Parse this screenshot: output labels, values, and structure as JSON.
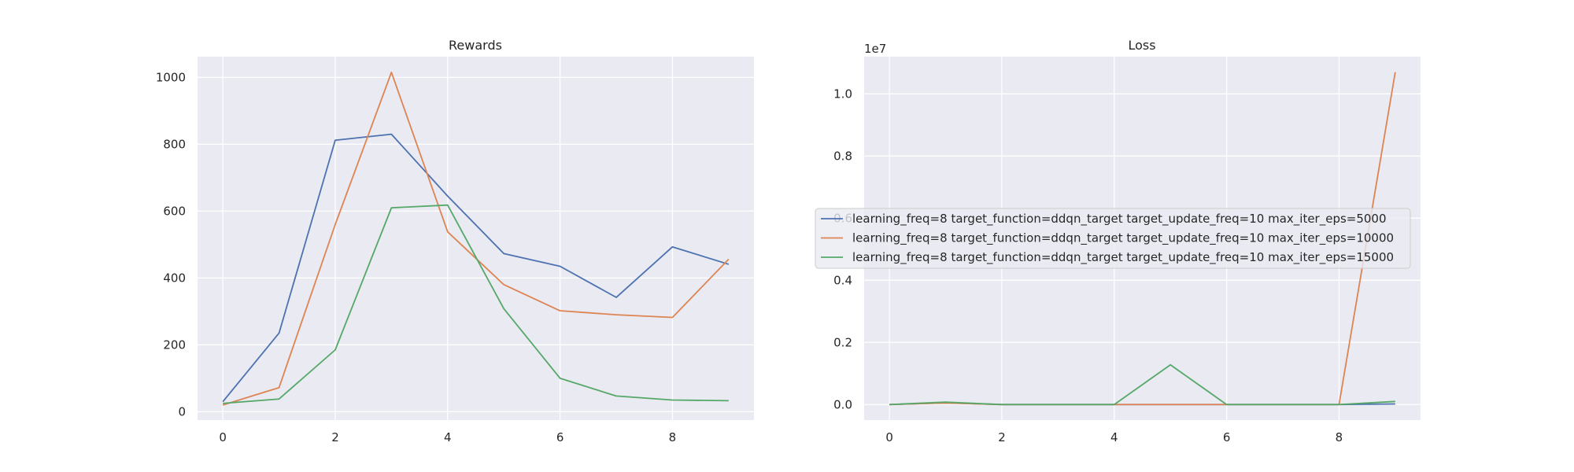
{
  "chart_data": [
    {
      "type": "line",
      "title": "Rewards",
      "xlabel": "",
      "ylabel": "",
      "x": [
        0,
        1,
        2,
        3,
        4,
        5,
        6,
        7,
        8,
        9
      ],
      "xlim": [
        -0.45,
        9.45
      ],
      "ylim": [
        -25,
        1062
      ],
      "xticks": [
        0,
        2,
        4,
        6,
        8
      ],
      "yticks": [
        0,
        200,
        400,
        600,
        800,
        1000
      ],
      "ytick_labels": [
        "0",
        "200",
        "400",
        "600",
        "800",
        "1000"
      ],
      "grid": true,
      "series": [
        {
          "color": "#4c72b0",
          "values": [
            30,
            235,
            812,
            830,
            645,
            473,
            435,
            342,
            493,
            441
          ]
        },
        {
          "color": "#dd8452",
          "values": [
            20,
            72,
            560,
            1015,
            538,
            380,
            302,
            290,
            282,
            456
          ]
        },
        {
          "color": "#55a868",
          "values": [
            25,
            38,
            185,
            610,
            618,
            308,
            100,
            47,
            35,
            33
          ]
        }
      ]
    },
    {
      "type": "line",
      "title": "Loss",
      "xlabel": "",
      "ylabel": "",
      "offset_text": "1e7",
      "x": [
        0,
        1,
        2,
        3,
        4,
        5,
        6,
        7,
        8,
        9
      ],
      "xlim": [
        -0.45,
        9.45
      ],
      "ylim": [
        -0.05,
        1.12
      ],
      "xticks": [
        0,
        2,
        4,
        6,
        8
      ],
      "yticks": [
        0.0,
        0.2,
        0.4,
        0.6,
        0.8,
        1.0
      ],
      "ytick_labels": [
        "0.0",
        "0.2",
        "0.4",
        "0.6",
        "0.8",
        "1.0"
      ],
      "grid": true,
      "legend_position": "center",
      "series": [
        {
          "name": "learning_freq=8 target_function=ddqn_target target_update_freq=10 max_iter_eps=5000",
          "color": "#4c72b0",
          "values": [
            0,
            0.005,
            0,
            0,
            0,
            0,
            0,
            0,
            0,
            0.002
          ]
        },
        {
          "name": "learning_freq=8 target_function=ddqn_target target_update_freq=10 max_iter_eps=10000",
          "color": "#dd8452",
          "values": [
            0,
            0.005,
            0,
            0,
            0,
            0,
            0,
            0,
            0,
            1.07
          ]
        },
        {
          "name": "learning_freq=8 target_function=ddqn_target target_update_freq=10 max_iter_eps=15000",
          "color": "#55a868",
          "values": [
            0,
            0.008,
            0,
            0,
            0,
            0.128,
            0,
            0,
            0,
            0.01
          ]
        }
      ]
    }
  ]
}
